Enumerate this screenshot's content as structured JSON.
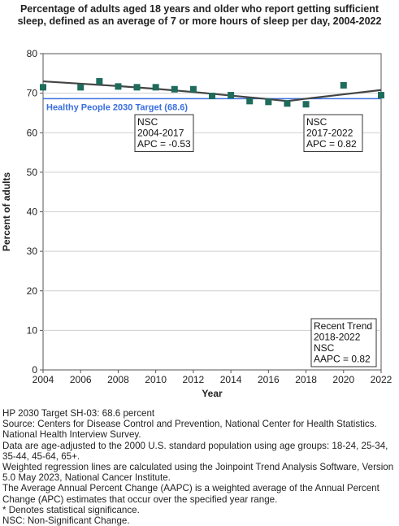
{
  "chart_data": {
    "type": "scatter",
    "title": "Percentage of adults aged 18 years and older who report getting sufficient sleep, defined as an average of 7 or more hours of sleep per day, 2004-2022",
    "xlabel": "Year",
    "ylabel": "Percent of adults",
    "xlim": [
      2004,
      2022
    ],
    "ylim": [
      0,
      80
    ],
    "x_ticks": [
      2004,
      2006,
      2008,
      2010,
      2012,
      2014,
      2016,
      2018,
      2020,
      2022
    ],
    "y_ticks": [
      0,
      10,
      20,
      30,
      40,
      50,
      60,
      70,
      80
    ],
    "grid": true,
    "series": [
      {
        "type": "scatter",
        "marker": "square",
        "color": "#1f6b5c",
        "x": [
          2004,
          2006,
          2007,
          2008,
          2009,
          2010,
          2011,
          2012,
          2013,
          2014,
          2015,
          2016,
          2017,
          2018,
          2020,
          2022
        ],
        "values": [
          71.5,
          71.5,
          73.0,
          71.7,
          71.5,
          71.5,
          71.0,
          71.0,
          69.3,
          69.5,
          68.0,
          67.8,
          67.4,
          67.2,
          72.0,
          69.5
        ]
      },
      {
        "type": "line",
        "color": "#444444",
        "x": [
          2004,
          2006,
          2008,
          2010,
          2012,
          2014,
          2016,
          2017,
          2018,
          2020,
          2022
        ],
        "values": [
          73.0,
          72.4,
          71.8,
          71.1,
          70.3,
          69.4,
          68.5,
          68.0,
          68.6,
          69.7,
          70.8
        ]
      }
    ],
    "target": {
      "label": "Healthy People 2030 Target (68.6)",
      "value": 68.6,
      "color": "#3a6fe0"
    },
    "annotations": [
      {
        "lines": [
          "NSC",
          "2004-2017",
          "APC = -0.53"
        ]
      },
      {
        "lines": [
          "NSC",
          "2017-2022",
          "APC =  0.82"
        ]
      },
      {
        "lines": [
          "Recent Trend",
          "2018-2022",
          "NSC",
          "AAPC =  0.82"
        ]
      }
    ]
  },
  "footnotes": [
    "HP 2030 Target SH-03: 68.6 percent",
    "Source: Centers for Disease Control and Prevention, National Center for Health Statistics. National Health Interview Survey.",
    "Data are age-adjusted to the 2000 U.S. standard population using age groups: 18-24, 25-34, 35-44, 45-64, 65+.",
    "Weighted regression lines are calculated using the Joinpoint Trend Analysis Software, Version 5.0 May 2023, National Cancer Institute.",
    "The Average Annual Percent Change (AAPC) is a weighted average of the Annual Percent Change (APC) estimates that occur over the specified year range.",
    "* Denotes statistical significance.",
    "NSC: Non-Significant Change."
  ]
}
